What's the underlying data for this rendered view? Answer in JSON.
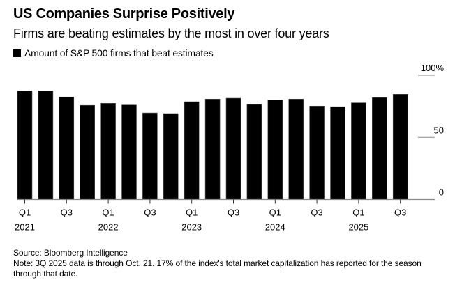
{
  "header": {
    "title": "US Companies Surprise Positively",
    "subtitle": "Firms are beating estimates by the most in over four years"
  },
  "chart_data": {
    "type": "bar",
    "title": "US Companies Surprise Positively",
    "subtitle": "Firms are beating estimates by the most in over four years",
    "legend": [
      {
        "name": "Amount of S&P 500 firms that beat estimates",
        "color": "#000000"
      }
    ],
    "legend_position": "top-left",
    "categories": [
      "Q1 2021",
      "Q2 2021",
      "Q3 2021",
      "Q4 2021",
      "Q1 2022",
      "Q2 2022",
      "Q3 2022",
      "Q4 2022",
      "Q1 2023",
      "Q2 2023",
      "Q3 2023",
      "Q4 2023",
      "Q1 2024",
      "Q2 2024",
      "Q3 2024",
      "Q4 2024",
      "Q1 2025",
      "Q2 2025",
      "Q3 2025"
    ],
    "series": [
      {
        "name": "Amount of S&P 500 firms that beat estimates",
        "color": "#000000",
        "values": [
          87.5,
          87.5,
          82.5,
          75.8,
          77.4,
          76.1,
          69.7,
          69.2,
          78.7,
          80.8,
          81.5,
          76.5,
          80.0,
          80.8,
          75.2,
          74.7,
          77.8,
          82.0,
          84.7
        ]
      }
    ],
    "x_ticks": [
      {
        "index": 0,
        "q": "Q1",
        "year": "2021"
      },
      {
        "index": 2,
        "q": "Q3",
        "year": ""
      },
      {
        "index": 4,
        "q": "Q1",
        "year": "2022"
      },
      {
        "index": 6,
        "q": "Q3",
        "year": ""
      },
      {
        "index": 8,
        "q": "Q1",
        "year": "2023"
      },
      {
        "index": 10,
        "q": "Q3",
        "year": ""
      },
      {
        "index": 12,
        "q": "Q1",
        "year": "2024"
      },
      {
        "index": 14,
        "q": "Q3",
        "year": ""
      },
      {
        "index": 16,
        "q": "Q1",
        "year": "2025"
      },
      {
        "index": 18,
        "q": "Q3",
        "year": ""
      }
    ],
    "y_ticks": [
      {
        "value": 100,
        "label": "100%"
      },
      {
        "value": 50,
        "label": "50"
      },
      {
        "value": 0,
        "label": "0"
      }
    ],
    "xlabel": "",
    "ylabel": "",
    "ylim": [
      0,
      100
    ],
    "y_axis_side": "right",
    "grid": false
  },
  "footer": {
    "source": "Source: Bloomberg Intelligence",
    "note": "Note: 3Q 2025 data is through Oct. 21. 17% of the index's total market capitalization has reported for the season through that date."
  }
}
